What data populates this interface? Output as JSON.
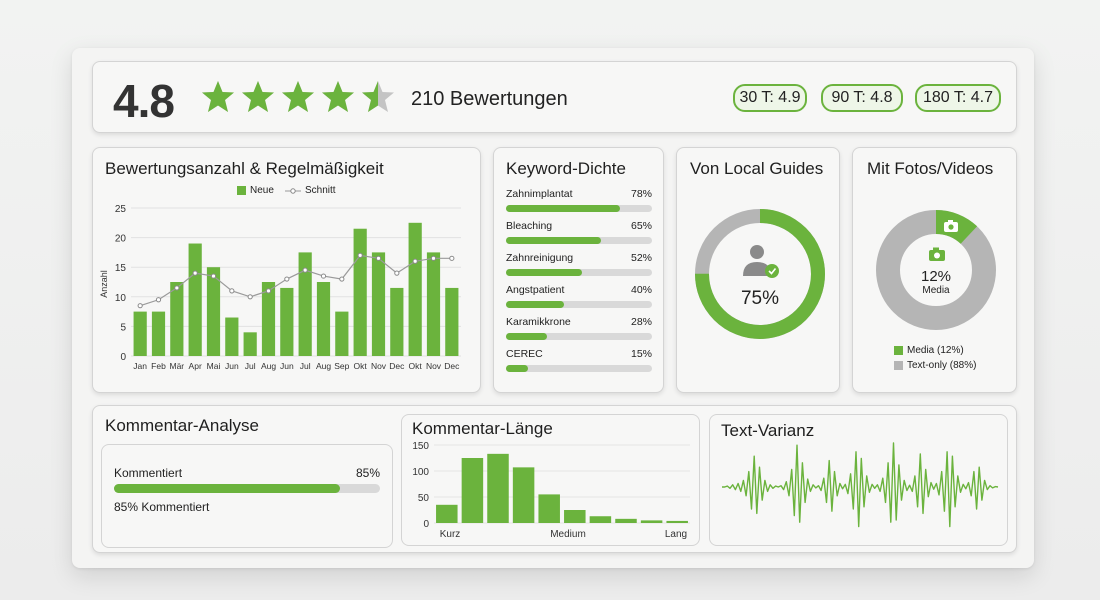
{
  "colors": {
    "accent": "#6bb33d",
    "gray": "#b5b5b5",
    "track": "#d9d9d9"
  },
  "header": {
    "rating": "4.8",
    "stars": {
      "value": 4.5,
      "max": 5
    },
    "review_count": "210 Bewertungen",
    "periods": [
      "30 T: 4.9",
      "90 T: 4.8",
      "180 T: 4.7"
    ]
  },
  "count_panel": {
    "title": "Bewertungsanzahl & Regelmäßigkeit",
    "legend": {
      "bars": "Neue",
      "line": "Schnitt"
    }
  },
  "keyword_panel": {
    "title": "Keyword-Dichte",
    "items": [
      {
        "label": "Zahnimplantat",
        "pct_text": "78%",
        "value": 78
      },
      {
        "label": "Bleaching",
        "pct_text": "65%",
        "value": 65
      },
      {
        "label": "Zahnreinigung",
        "pct_text": "52%",
        "value": 52
      },
      {
        "label": "Angstpatient",
        "pct_text": "40%",
        "value": 40
      },
      {
        "label": "Karamikkrone",
        "pct_text": "28%",
        "value": 28
      },
      {
        "label": "CEREC",
        "pct_text": "15%",
        "value": 15
      }
    ]
  },
  "local_guides": {
    "title": "Von Local Guides",
    "value_text": "75%",
    "value": 75,
    "icon": "user-badge-icon"
  },
  "media": {
    "title": "Mit Fotos/Videos",
    "center_value": "12%",
    "center_label": "Media",
    "icon": "camera-icon",
    "legend": [
      "Media (12%)",
      "Text-only (88%)"
    ]
  },
  "comment_analysis": {
    "title": "Kommentar-Analyse",
    "label": "Kommentiert",
    "pct_text": "85%",
    "value": 85,
    "caption": "85% Kommentiert"
  },
  "comment_length": {
    "title": "Kommentar-Länge"
  },
  "text_variance": {
    "title": "Text-Varianz"
  },
  "chart_data": [
    {
      "type": "bar",
      "title": "",
      "ylabel": "Anzahl",
      "ylim": [
        0,
        25
      ],
      "yticks": [
        0,
        5,
        10,
        15,
        20,
        25
      ],
      "categories": [
        "Jan",
        "Feb",
        "Mär",
        "Apr",
        "Mai",
        "Jun",
        "Jul",
        "Aug",
        "Jun",
        "Jul",
        "Aug",
        "Sep",
        "Okt",
        "Nov",
        "Dec",
        "Okt",
        "Nov",
        "Dec"
      ],
      "series": [
        {
          "name": "Neue",
          "type": "bar",
          "values": [
            7.5,
            7.5,
            12.5,
            19,
            15,
            6.5,
            4,
            12.5,
            11.5,
            17.5,
            12.5,
            7.5,
            21.5,
            17.5,
            11.5,
            22.5,
            17.5,
            11.5
          ]
        },
        {
          "name": "Schnitt",
          "type": "line",
          "values": [
            8.5,
            9.5,
            11.5,
            14,
            13.5,
            11,
            10,
            11,
            13,
            14.5,
            13.5,
            13,
            17,
            16.5,
            14,
            16,
            16.5,
            16.5
          ]
        }
      ],
      "grid": true
    },
    {
      "type": "bar",
      "title": "",
      "ylim": [
        0,
        150
      ],
      "yticks": [
        0,
        50,
        100,
        150
      ],
      "xlabels": [
        "Kurz",
        "Medium",
        "Lang"
      ],
      "values": [
        35,
        125,
        133,
        107,
        55,
        25,
        13,
        8,
        5,
        4
      ]
    },
    {
      "type": "line",
      "title": "",
      "values": [
        0,
        0,
        0.02,
        -0.03,
        0.05,
        -0.06,
        0.08,
        -0.1,
        0.15,
        -0.2,
        0.35,
        -0.5,
        0.7,
        -0.6,
        0.45,
        -0.3,
        0.15,
        -0.1,
        0.05,
        -0.03,
        0.02,
        0,
        0.03,
        -0.06,
        0.12,
        -0.2,
        0.4,
        -0.65,
        0.95,
        -0.8,
        0.55,
        -0.35,
        0.18,
        -0.1,
        0.05,
        -0.02,
        0.03,
        -0.08,
        0.2,
        -0.35,
        0.6,
        -0.55,
        0.35,
        -0.2,
        0.08,
        -0.04,
        0.06,
        -0.15,
        0.3,
        -0.5,
        0.8,
        -0.9,
        0.65,
        -0.45,
        0.25,
        -0.12,
        0.06,
        -0.03,
        0.05,
        -0.1,
        0.2,
        -0.35,
        0.55,
        -0.8,
        1,
        -0.75,
        0.5,
        -0.3,
        0.15,
        -0.08,
        0.04,
        -0.1,
        0.25,
        -0.45,
        0.75,
        -0.6,
        0.4,
        -0.22,
        0.1,
        -0.05,
        0.08,
        -0.18,
        0.35,
        -0.55,
        0.8,
        -0.9,
        0.7,
        -0.45,
        0.25,
        -0.12,
        0.06,
        -0.04,
        0.1,
        -0.2,
        0.35,
        -0.5,
        0.45,
        -0.3,
        0.15,
        -0.06,
        0.03,
        -0.02,
        0.01,
        0
      ]
    }
  ]
}
